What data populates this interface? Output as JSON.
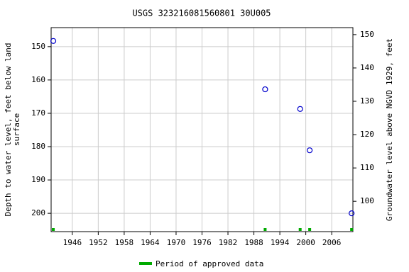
{
  "chart_data": {
    "type": "scatter",
    "title": "USGS 323216081560801 30U005",
    "ylabel": [
      "Depth to water level, feet below land",
      "surface"
    ],
    "y2label": "Groundwater level above NGVD 1929, feet",
    "x": [
      1941.6,
      1990.6,
      1998.7,
      2000.9,
      2010.6
    ],
    "values": [
      148.3,
      162.8,
      168.7,
      181.1,
      200.0
    ],
    "color": "#0000cc",
    "xlim": [
      1941.1,
      2010.9
    ],
    "xticks": [
      1946,
      1952,
      1958,
      1964,
      1970,
      1976,
      1982,
      1988,
      1994,
      2000,
      2006
    ],
    "ylim": [
      205.5,
      144.3
    ],
    "yticks": [
      150,
      160,
      170,
      180,
      190,
      200
    ],
    "y2lim": [
      90.9,
      152.1
    ],
    "y2ticks": [
      100,
      110,
      120,
      130,
      140,
      150
    ],
    "grid": true,
    "approved": {
      "name": "Period of approved data",
      "color": "#00aa00",
      "x": [
        1941.6,
        1990.6,
        1998.7,
        2000.9,
        2010.6
      ]
    }
  }
}
